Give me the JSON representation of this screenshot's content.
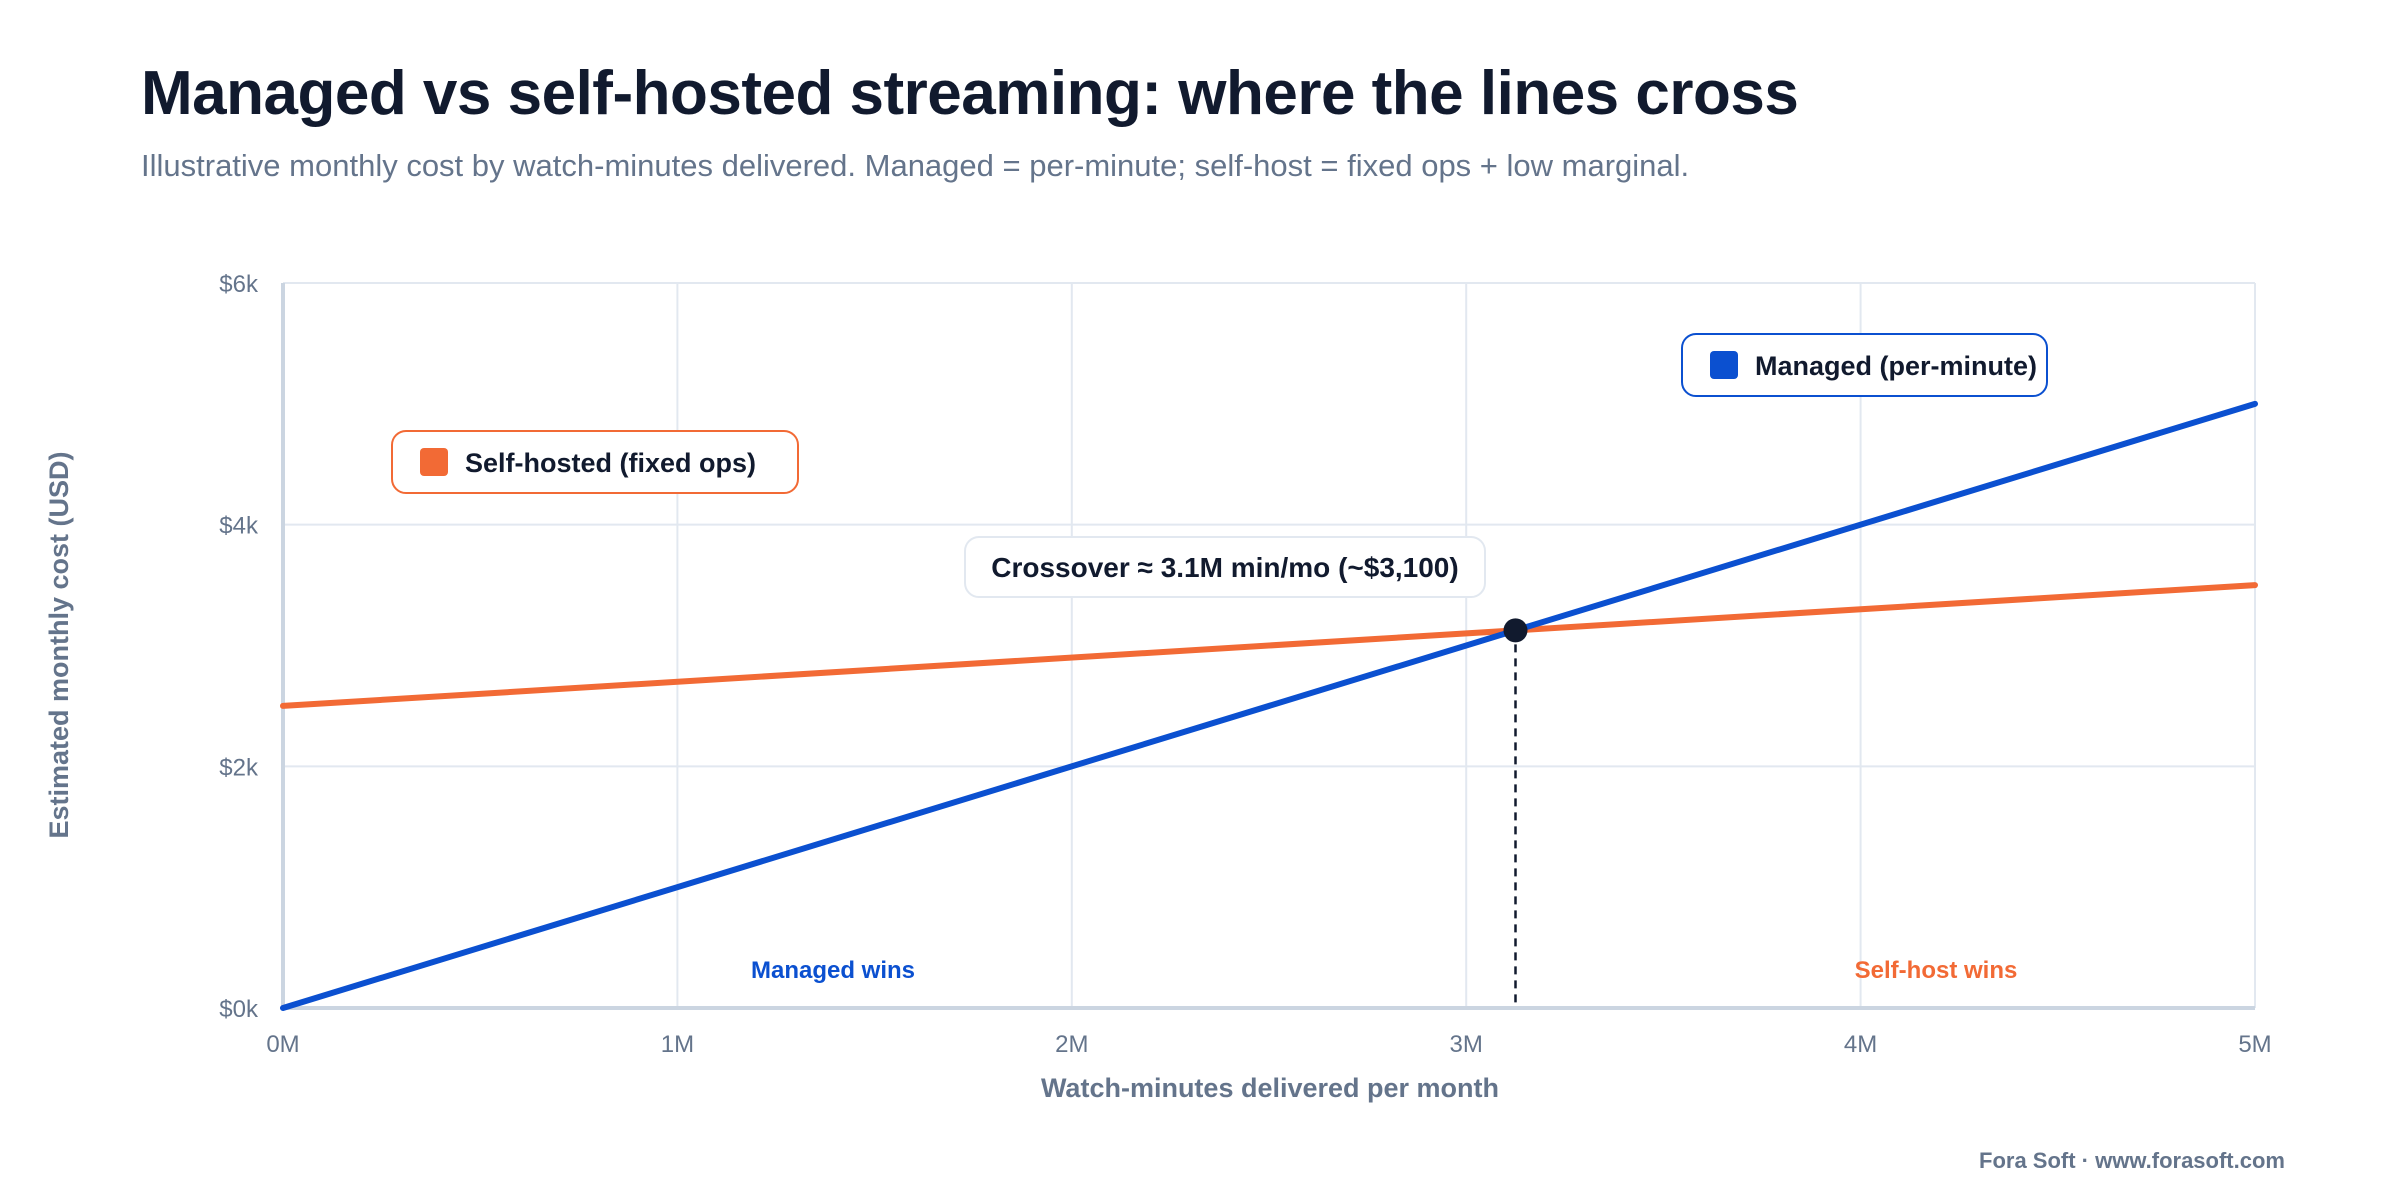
{
  "title": "Managed vs self-hosted streaming: where the lines cross",
  "subtitle": "Illustrative monthly cost by watch-minutes delivered. Managed = per-minute; self-host = fixed ops + low marginal.",
  "footer": "Fora Soft · www.forasoft.com",
  "colors": {
    "managed": "#0b50d0",
    "self_hosted": "#f26a35",
    "crossover_point": "#111a2e",
    "grid": "#e2e8f0",
    "text_muted": "#64748b"
  },
  "chart_data": {
    "type": "line",
    "xlabel": "Watch-minutes delivered per month",
    "ylabel": "Estimated monthly cost (USD)",
    "xlim": [
      0,
      5
    ],
    "ylim": [
      0,
      6000
    ],
    "x_ticks": [
      {
        "value": 0,
        "label": "0M"
      },
      {
        "value": 1,
        "label": "1M"
      },
      {
        "value": 2,
        "label": "2M"
      },
      {
        "value": 3,
        "label": "3M"
      },
      {
        "value": 4,
        "label": "4M"
      },
      {
        "value": 5,
        "label": "5M"
      }
    ],
    "y_ticks": [
      {
        "value": 0,
        "label": "$0k"
      },
      {
        "value": 2000,
        "label": "$2k"
      },
      {
        "value": 4000,
        "label": "$4k"
      },
      {
        "value": 6000,
        "label": "$6k"
      }
    ],
    "grid": true,
    "series": [
      {
        "key": "managed",
        "name": "Managed (per-minute)",
        "color": "#0b50d0",
        "x": [
          0,
          5
        ],
        "y": [
          0,
          5000
        ]
      },
      {
        "key": "self_hosted",
        "name": "Self-hosted (fixed ops)",
        "color": "#f26a35",
        "x": [
          0,
          5
        ],
        "y": [
          2500,
          3500
        ]
      }
    ],
    "crossover": {
      "x": 3.125,
      "y": 3125,
      "label": "Crossover ≈ 3.1M min/mo (~$3,100)"
    },
    "regions": [
      {
        "key": "managed",
        "label": "Managed wins",
        "color": "#0b50d0"
      },
      {
        "key": "self_hosted",
        "label": "Self-host wins",
        "color": "#f26a35"
      }
    ]
  }
}
